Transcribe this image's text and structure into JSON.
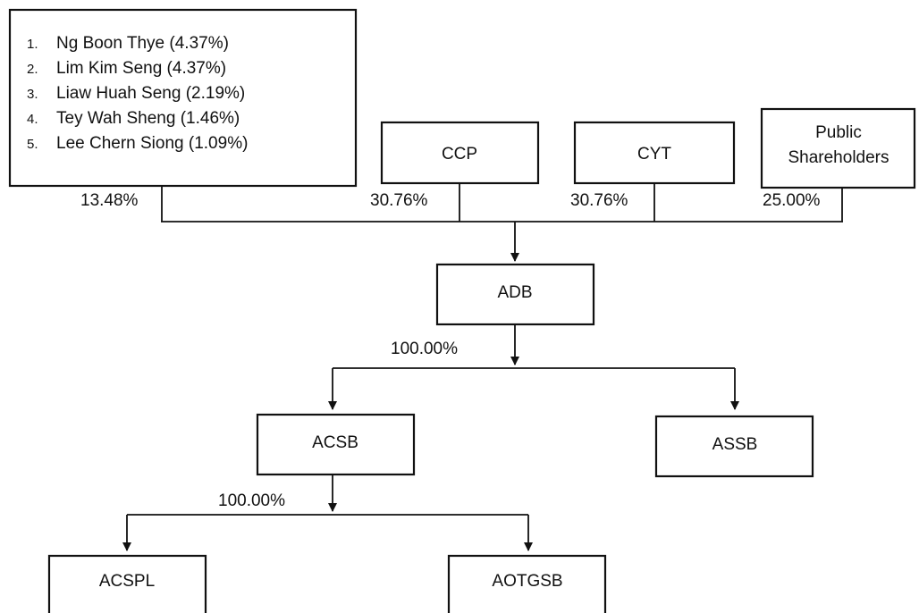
{
  "individual_shareholders": {
    "items": [
      {
        "num": "1.",
        "text": "Ng Boon Thye (4.37%)"
      },
      {
        "num": "2.",
        "text": "Lim Kim Seng (4.37%)"
      },
      {
        "num": "3.",
        "text": "Liaw Huah Seng (2.19%)"
      },
      {
        "num": "4.",
        "text": "Tey Wah Sheng (1.46%)"
      },
      {
        "num": "5.",
        "text": "Lee Chern Siong (1.09%)"
      }
    ],
    "stake": "13.48%"
  },
  "ccp": {
    "label": "CCP",
    "stake": "30.76%"
  },
  "cyt": {
    "label": "CYT",
    "stake": "30.76%"
  },
  "public": {
    "label_line1": "Public",
    "label_line2": "Shareholders",
    "stake": "25.00%"
  },
  "adb": {
    "label": "ADB",
    "stake": "100.00%"
  },
  "acsb": {
    "label": "ACSB",
    "stake": "100.00%"
  },
  "assb": {
    "label": "ASSB"
  },
  "acspl": {
    "label": "ACSPL"
  },
  "aotgsb": {
    "label": "AOTGSB"
  }
}
